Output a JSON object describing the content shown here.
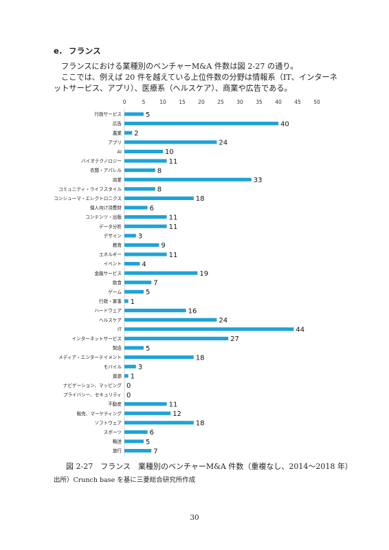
{
  "section": {
    "number": "e.",
    "title": "フランス"
  },
  "paragraphs": [
    "フランスにおける業種別のベンチャーM&A 件数は図 2-27 の通り。",
    "ここでは、例えば 20 件を越えている上位件数の分野は情報系（IT、インターネットサービス、アプリ）、医療系（ヘルスケア）、商業や広告である。"
  ],
  "chart_data": {
    "type": "bar",
    "orientation": "horizontal",
    "x_ticks": [
      "0",
      "5",
      "10",
      "15",
      "20",
      "25",
      "30",
      "35",
      "40",
      "45",
      "50"
    ],
    "xlim": [
      0,
      50
    ],
    "grid": false,
    "bar_color": "#1ea3d8",
    "categories": [
      "行政サービス",
      "広告",
      "農業",
      "アプリ",
      "AI",
      "バイオテクノロジー",
      "衣類・アパレル",
      "商業",
      "コミュニティ・ライフスタイル",
      "コンシューマ・エレクトロニクス",
      "個人向け消費財",
      "コンテンツ・出版",
      "データ分析",
      "デザイン",
      "教育",
      "エネルギー",
      "イベント",
      "金融サービス",
      "飲食",
      "ゲーム",
      "行政・軍事",
      "ハードウェア",
      "ヘルスケア",
      "IT",
      "インターネットサービス",
      "製造",
      "メディア・エンターテイメント",
      "モバイル",
      "資源",
      "ナビゲーション、マッピング",
      "プライバシー、セキュリティ",
      "不動産",
      "販売、マーケティング",
      "ソフトウェア",
      "スポーツ",
      "輸送",
      "旅行"
    ],
    "values": [
      5,
      40,
      2,
      24,
      10,
      11,
      8,
      33,
      8,
      18,
      6,
      11,
      11,
      3,
      9,
      11,
      4,
      19,
      7,
      5,
      1,
      16,
      24,
      44,
      27,
      5,
      18,
      3,
      1,
      0,
      0,
      11,
      12,
      18,
      6,
      5,
      7
    ]
  },
  "caption": "図 2-27　フランス　業種別のベンチャーM&A 件数（重複なし、2014～2018 年）",
  "source": "出所）Crunch base を基に三菱総合研究所作成",
  "page_number": "30"
}
